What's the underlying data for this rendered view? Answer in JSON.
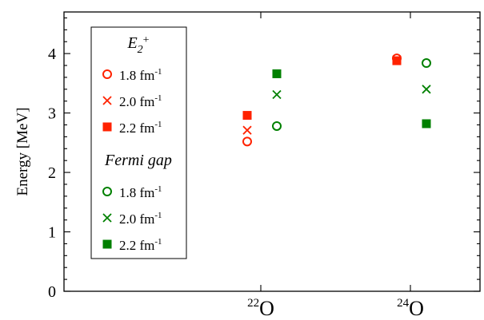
{
  "chart_data": {
    "type": "scatter",
    "ylabel": "Energy [MeV]",
    "xlabel": "",
    "ylim": [
      0,
      4.7
    ],
    "yticks": [
      "0",
      "1",
      "2",
      "3",
      "4"
    ],
    "categories": [
      {
        "mass": "22",
        "element": "O"
      },
      {
        "mass": "24",
        "element": "O"
      }
    ],
    "legend": {
      "position": "top-left",
      "groups": [
        {
          "title_main": "E",
          "title_sub": "2",
          "title_sup": "+",
          "color": "#ff2200",
          "entries": [
            {
              "text": "1.8 fm",
              "sup": "-1",
              "marker": "open-circle"
            },
            {
              "text": "2.0 fm",
              "sup": "-1",
              "marker": "cross"
            },
            {
              "text": "2.2 fm",
              "sup": "-1",
              "marker": "filled-square"
            }
          ]
        },
        {
          "title": "Fermi gap",
          "color": "#008000",
          "entries": [
            {
              "text": "1.8 fm",
              "sup": "-1",
              "marker": "open-circle"
            },
            {
              "text": "2.0 fm",
              "sup": "-1",
              "marker": "cross"
            },
            {
              "text": "2.2 fm",
              "sup": "-1",
              "marker": "filled-square"
            }
          ]
        }
      ]
    },
    "series": [
      {
        "group": "E2+",
        "cutoff": "1.8",
        "marker": "open-circle",
        "color": "#ff2200",
        "points": [
          {
            "category": 0,
            "y": 2.52
          },
          {
            "category": 1,
            "y": 3.92
          }
        ]
      },
      {
        "group": "E2+",
        "cutoff": "2.0",
        "marker": "cross",
        "color": "#ff2200",
        "points": [
          {
            "category": 0,
            "y": 2.71
          },
          {
            "category": 1,
            "y": 3.9
          }
        ]
      },
      {
        "group": "E2+",
        "cutoff": "2.2",
        "marker": "filled-square",
        "color": "#ff2200",
        "points": [
          {
            "category": 0,
            "y": 2.96
          },
          {
            "category": 1,
            "y": 3.88
          }
        ]
      },
      {
        "group": "Fermi gap",
        "cutoff": "1.8",
        "marker": "open-circle",
        "color": "#008000",
        "points": [
          {
            "category": 0,
            "y": 2.78
          },
          {
            "category": 1,
            "y": 3.84
          }
        ]
      },
      {
        "group": "Fermi gap",
        "cutoff": "2.0",
        "marker": "cross",
        "color": "#008000",
        "points": [
          {
            "category": 0,
            "y": 3.31
          },
          {
            "category": 1,
            "y": 3.4
          }
        ]
      },
      {
        "group": "Fermi gap",
        "cutoff": "2.2",
        "marker": "filled-square",
        "color": "#008000",
        "points": [
          {
            "category": 0,
            "y": 3.66
          },
          {
            "category": 1,
            "y": 2.82
          }
        ]
      }
    ]
  }
}
